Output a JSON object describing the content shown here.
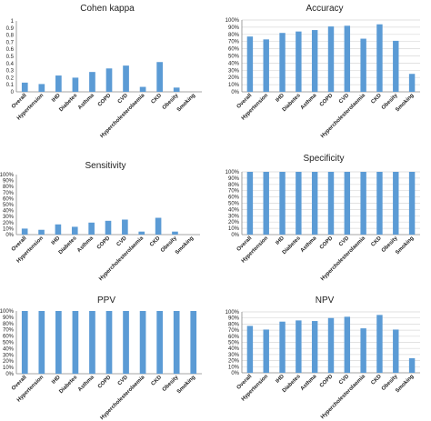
{
  "colors": {
    "bar": "#5B9BD5",
    "axis": "#888888",
    "grid": "#d9d9d9",
    "text": "#222222"
  },
  "chart_data": [
    {
      "type": "bar",
      "title": "Cohen kappa",
      "categories": [
        "Overall",
        "Hypertension",
        "IHD",
        "Diabetes",
        "Asthma",
        "COPD",
        "CVD",
        "Hypercholesterolaemia",
        "CKD",
        "Obesity",
        "Smoking"
      ],
      "values": [
        0.13,
        0.11,
        0.23,
        0.2,
        0.28,
        0.33,
        0.37,
        0.07,
        0.42,
        0.06,
        0.0
      ],
      "ylim": [
        0,
        1
      ],
      "yticks": [
        "0",
        "0.1",
        "0.2",
        "0.3",
        "0.4",
        "0.5",
        "0.6",
        "0.7",
        "0.8",
        "0.9",
        "1"
      ],
      "grid": false
    },
    {
      "type": "bar",
      "title": "Accuracy",
      "categories": [
        "Overall",
        "Hypertension",
        "IHD",
        "Diabetes",
        "Asthma",
        "COPD",
        "CVD",
        "Hypercholesterolaemia",
        "CKD",
        "Obesity",
        "Smoking"
      ],
      "values": [
        77,
        73,
        82,
        84,
        86,
        91,
        92,
        74,
        94,
        71,
        25
      ],
      "ylim": [
        0,
        100
      ],
      "yticks": [
        "0%",
        "10%",
        "20%",
        "30%",
        "40%",
        "50%",
        "60%",
        "70%",
        "80%",
        "90%",
        "100%"
      ],
      "grid": true
    },
    {
      "type": "bar",
      "title": "Sensitivity",
      "categories": [
        "Overall",
        "Hypertension",
        "IHD",
        "Diabetes",
        "Asthma",
        "COPD",
        "CVD",
        "Hypercholesterolaemia",
        "CKD",
        "Obesity",
        "Smoking"
      ],
      "values": [
        10,
        8,
        17,
        13,
        20,
        23,
        25,
        5,
        28,
        5,
        0
      ],
      "ylim": [
        0,
        100
      ],
      "yticks": [
        "0%",
        "10%",
        "20%",
        "30%",
        "40%",
        "50%",
        "60%",
        "70%",
        "80%",
        "90%",
        "100%"
      ],
      "grid": false
    },
    {
      "type": "bar",
      "title": "Specificity",
      "categories": [
        "Overall",
        "Hypertension",
        "IHD",
        "Diabetes",
        "Asthma",
        "COPD",
        "CVD",
        "Hypercholesterolaemia",
        "CKD",
        "Obesity",
        "Smoking"
      ],
      "values": [
        100,
        100,
        100,
        100,
        100,
        100,
        100,
        100,
        100,
        100,
        100
      ],
      "ylim": [
        0,
        100
      ],
      "yticks": [
        "0%",
        "10%",
        "20%",
        "30%",
        "40%",
        "50%",
        "60%",
        "70%",
        "80%",
        "90%",
        "100%"
      ],
      "grid": true
    },
    {
      "type": "bar",
      "title": "PPV",
      "categories": [
        "Overall",
        "Hypertension",
        "IHD",
        "Diabetes",
        "Asthma",
        "COPD",
        "CVD",
        "Hypercholesterolaemia",
        "CKD",
        "Obesity",
        "Smoking"
      ],
      "values": [
        100,
        100,
        100,
        100,
        100,
        100,
        100,
        100,
        100,
        100,
        100
      ],
      "ylim": [
        0,
        100
      ],
      "yticks": [
        "0%",
        "10%",
        "20%",
        "30%",
        "40%",
        "50%",
        "60%",
        "70%",
        "80%",
        "90%",
        "100%"
      ],
      "grid": false
    },
    {
      "type": "bar",
      "title": "NPV",
      "categories": [
        "Overall",
        "Hypertension",
        "IHD",
        "Diabetes",
        "Asthma",
        "COPD",
        "CVD",
        "Hypercholesterolaemia",
        "CKD",
        "Obesity",
        "Smoking"
      ],
      "values": [
        77,
        71,
        84,
        86,
        85,
        90,
        92,
        73,
        95,
        71,
        24
      ],
      "ylim": [
        0,
        100
      ],
      "yticks": [
        "0%",
        "10%",
        "20%",
        "30%",
        "40%",
        "50%",
        "60%",
        "70%",
        "80%",
        "90%",
        "100%"
      ],
      "grid": true
    }
  ]
}
